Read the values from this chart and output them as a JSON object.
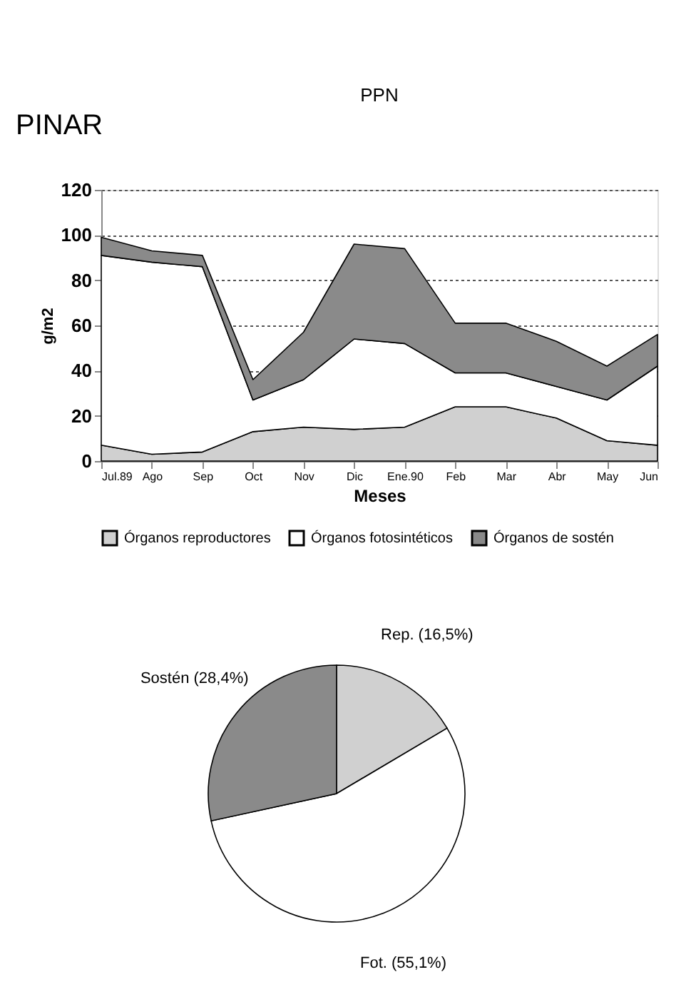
{
  "chart_data": [
    {
      "type": "area",
      "title": "PPN",
      "xlabel": "Meses",
      "ylabel": "g/m2",
      "stacked": true,
      "annotations": [
        "PINAR"
      ],
      "categories": [
        "Jul.89",
        "Ago",
        "Sep",
        "Oct",
        "Nov",
        "Dic",
        "Ene.90",
        "Feb",
        "Mar",
        "Abr",
        "May",
        "Jun"
      ],
      "series": [
        {
          "name": "Órganos reproductores",
          "color": "#d0d0d0",
          "values": [
            7,
            3,
            4,
            13,
            15,
            14,
            15,
            24,
            24,
            19,
            9,
            7
          ]
        },
        {
          "name": "Órganos fotosintéticos",
          "color": "#ffffff",
          "values": [
            84,
            85,
            82,
            14,
            21,
            40,
            37,
            15,
            15,
            14,
            18,
            35
          ]
        },
        {
          "name": "Órganos de sostén",
          "color": "#8a8a8a",
          "values": [
            8,
            5,
            5,
            9,
            21,
            42,
            42,
            22,
            22,
            20,
            15,
            14
          ]
        }
      ],
      "ylim": [
        0,
        120
      ],
      "yticks": [
        0,
        20,
        40,
        60,
        80,
        100,
        120
      ],
      "grid": "y",
      "legend": "bottom"
    },
    {
      "type": "pie",
      "categories": [
        "Rep. (16,5%)",
        "Fot. (55,1%)",
        "Sostén (28,4%)"
      ],
      "values": [
        16.5,
        55.1,
        28.4
      ],
      "colors": [
        "#d0d0d0",
        "#ffffff",
        "#8a8a8a"
      ]
    }
  ]
}
